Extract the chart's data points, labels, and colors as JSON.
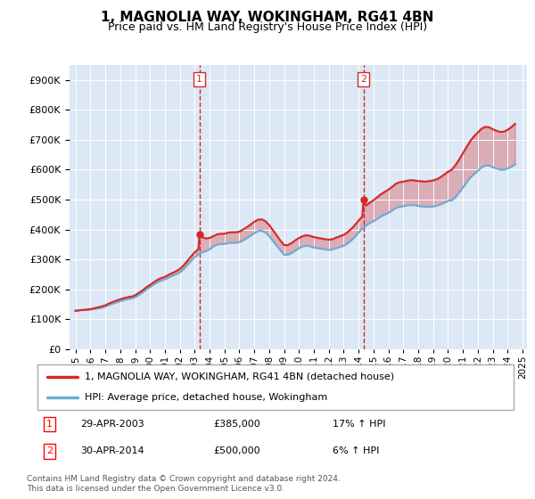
{
  "title": "1, MAGNOLIA WAY, WOKINGHAM, RG41 4BN",
  "subtitle": "Price paid vs. HM Land Registry's House Price Index (HPI)",
  "ylim": [
    0,
    950000
  ],
  "yticks": [
    0,
    100000,
    200000,
    300000,
    400000,
    500000,
    600000,
    700000,
    800000,
    900000
  ],
  "sale1_date": 2003.32,
  "sale1_price": 385000,
  "sale2_date": 2014.33,
  "sale2_price": 500000,
  "hpi_color": "#6baed6",
  "price_color": "#d62728",
  "vline_color": "#d62728",
  "bg_color": "#dce8f5",
  "legend_label_price": "1, MAGNOLIA WAY, WOKINGHAM, RG41 4BN (detached house)",
  "legend_label_hpi": "HPI: Average price, detached house, Wokingham",
  "footer": "Contains HM Land Registry data © Crown copyright and database right 2024.\nThis data is licensed under the Open Government Licence v3.0.",
  "hpi_data": [
    [
      1995.0,
      130000
    ],
    [
      1995.25,
      131000
    ],
    [
      1995.5,
      131500
    ],
    [
      1995.75,
      132000
    ],
    [
      1996.0,
      133000
    ],
    [
      1996.25,
      135000
    ],
    [
      1996.5,
      137000
    ],
    [
      1996.75,
      139000
    ],
    [
      1997.0,
      143000
    ],
    [
      1997.25,
      148000
    ],
    [
      1997.5,
      153000
    ],
    [
      1997.75,
      157000
    ],
    [
      1998.0,
      161000
    ],
    [
      1998.25,
      165000
    ],
    [
      1998.5,
      168000
    ],
    [
      1998.75,
      170000
    ],
    [
      1999.0,
      174000
    ],
    [
      1999.25,
      182000
    ],
    [
      1999.5,
      190000
    ],
    [
      1999.75,
      200000
    ],
    [
      2000.0,
      208000
    ],
    [
      2000.25,
      217000
    ],
    [
      2000.5,
      224000
    ],
    [
      2000.75,
      230000
    ],
    [
      2001.0,
      234000
    ],
    [
      2001.25,
      240000
    ],
    [
      2001.5,
      246000
    ],
    [
      2001.75,
      251000
    ],
    [
      2002.0,
      257000
    ],
    [
      2002.25,
      268000
    ],
    [
      2002.5,
      282000
    ],
    [
      2002.75,
      296000
    ],
    [
      2003.0,
      308000
    ],
    [
      2003.25,
      318000
    ],
    [
      2003.5,
      324000
    ],
    [
      2003.75,
      328000
    ],
    [
      2004.0,
      334000
    ],
    [
      2004.25,
      344000
    ],
    [
      2004.5,
      350000
    ],
    [
      2004.75,
      352000
    ],
    [
      2005.0,
      352000
    ],
    [
      2005.25,
      355000
    ],
    [
      2005.5,
      356000
    ],
    [
      2005.75,
      356000
    ],
    [
      2006.0,
      358000
    ],
    [
      2006.25,
      364000
    ],
    [
      2006.5,
      372000
    ],
    [
      2006.75,
      380000
    ],
    [
      2007.0,
      388000
    ],
    [
      2007.25,
      395000
    ],
    [
      2007.5,
      396000
    ],
    [
      2007.75,
      390000
    ],
    [
      2008.0,
      378000
    ],
    [
      2008.25,
      362000
    ],
    [
      2008.5,
      346000
    ],
    [
      2008.75,
      330000
    ],
    [
      2009.0,
      316000
    ],
    [
      2009.25,
      316000
    ],
    [
      2009.5,
      322000
    ],
    [
      2009.75,
      330000
    ],
    [
      2010.0,
      338000
    ],
    [
      2010.25,
      344000
    ],
    [
      2010.5,
      346000
    ],
    [
      2010.75,
      344000
    ],
    [
      2011.0,
      340000
    ],
    [
      2011.25,
      338000
    ],
    [
      2011.5,
      336000
    ],
    [
      2011.75,
      334000
    ],
    [
      2012.0,
      332000
    ],
    [
      2012.25,
      334000
    ],
    [
      2012.5,
      338000
    ],
    [
      2012.75,
      342000
    ],
    [
      2013.0,
      346000
    ],
    [
      2013.25,
      354000
    ],
    [
      2013.5,
      364000
    ],
    [
      2013.75,
      376000
    ],
    [
      2014.0,
      390000
    ],
    [
      2014.25,
      403000
    ],
    [
      2014.5,
      414000
    ],
    [
      2014.75,
      422000
    ],
    [
      2015.0,
      428000
    ],
    [
      2015.25,
      436000
    ],
    [
      2015.5,
      444000
    ],
    [
      2015.75,
      450000
    ],
    [
      2016.0,
      456000
    ],
    [
      2016.25,
      464000
    ],
    [
      2016.5,
      472000
    ],
    [
      2016.75,
      476000
    ],
    [
      2017.0,
      478000
    ],
    [
      2017.25,
      481000
    ],
    [
      2017.5,
      482000
    ],
    [
      2017.75,
      481000
    ],
    [
      2018.0,
      479000
    ],
    [
      2018.25,
      477000
    ],
    [
      2018.5,
      476000
    ],
    [
      2018.75,
      476000
    ],
    [
      2019.0,
      477000
    ],
    [
      2019.25,
      480000
    ],
    [
      2019.5,
      484000
    ],
    [
      2019.75,
      490000
    ],
    [
      2020.0,
      496000
    ],
    [
      2020.25,
      498000
    ],
    [
      2020.5,
      508000
    ],
    [
      2020.75,
      524000
    ],
    [
      2021.0,
      540000
    ],
    [
      2021.25,
      558000
    ],
    [
      2021.5,
      574000
    ],
    [
      2021.75,
      586000
    ],
    [
      2022.0,
      596000
    ],
    [
      2022.25,
      608000
    ],
    [
      2022.5,
      614000
    ],
    [
      2022.75,
      614000
    ],
    [
      2023.0,
      608000
    ],
    [
      2023.25,
      604000
    ],
    [
      2023.5,
      600000
    ],
    [
      2023.75,
      600000
    ],
    [
      2024.0,
      604000
    ],
    [
      2024.25,
      610000
    ],
    [
      2024.5,
      618000
    ]
  ],
  "price_data": [
    [
      1995.0,
      128000
    ],
    [
      1995.25,
      130000
    ],
    [
      1995.5,
      131500
    ],
    [
      1995.75,
      132500
    ],
    [
      1996.0,
      134000
    ],
    [
      1996.25,
      137000
    ],
    [
      1996.5,
      140000
    ],
    [
      1996.75,
      143000
    ],
    [
      1997.0,
      147000
    ],
    [
      1997.25,
      153000
    ],
    [
      1997.5,
      158000
    ],
    [
      1997.75,
      163000
    ],
    [
      1998.0,
      167000
    ],
    [
      1998.25,
      171000
    ],
    [
      1998.5,
      174000
    ],
    [
      1998.75,
      176000
    ],
    [
      1999.0,
      180000
    ],
    [
      1999.25,
      189000
    ],
    [
      1999.5,
      197000
    ],
    [
      1999.75,
      207000
    ],
    [
      2000.0,
      215000
    ],
    [
      2000.25,
      224000
    ],
    [
      2000.5,
      232000
    ],
    [
      2000.75,
      238000
    ],
    [
      2001.0,
      242000
    ],
    [
      2001.25,
      249000
    ],
    [
      2001.5,
      255000
    ],
    [
      2001.75,
      261000
    ],
    [
      2002.0,
      268000
    ],
    [
      2002.25,
      280000
    ],
    [
      2002.5,
      295000
    ],
    [
      2002.75,
      310000
    ],
    [
      2003.0,
      324000
    ],
    [
      2003.25,
      335000
    ],
    [
      2003.32,
      385000
    ],
    [
      2003.5,
      375000
    ],
    [
      2003.75,
      370000
    ],
    [
      2004.0,
      372000
    ],
    [
      2004.25,
      378000
    ],
    [
      2004.5,
      384000
    ],
    [
      2004.75,
      386000
    ],
    [
      2005.0,
      386000
    ],
    [
      2005.25,
      390000
    ],
    [
      2005.5,
      391000
    ],
    [
      2005.75,
      391000
    ],
    [
      2006.0,
      393000
    ],
    [
      2006.25,
      400000
    ],
    [
      2006.5,
      408000
    ],
    [
      2006.75,
      417000
    ],
    [
      2007.0,
      426000
    ],
    [
      2007.25,
      433000
    ],
    [
      2007.5,
      434000
    ],
    [
      2007.75,
      428000
    ],
    [
      2008.0,
      415000
    ],
    [
      2008.25,
      398000
    ],
    [
      2008.5,
      381000
    ],
    [
      2008.75,
      363000
    ],
    [
      2009.0,
      348000
    ],
    [
      2009.25,
      348000
    ],
    [
      2009.5,
      355000
    ],
    [
      2009.75,
      364000
    ],
    [
      2010.0,
      372000
    ],
    [
      2010.25,
      378000
    ],
    [
      2010.5,
      381000
    ],
    [
      2010.75,
      379000
    ],
    [
      2011.0,
      375000
    ],
    [
      2011.25,
      372000
    ],
    [
      2011.5,
      370000
    ],
    [
      2011.75,
      368000
    ],
    [
      2012.0,
      366000
    ],
    [
      2012.25,
      368000
    ],
    [
      2012.5,
      373000
    ],
    [
      2012.75,
      378000
    ],
    [
      2013.0,
      382000
    ],
    [
      2013.25,
      391000
    ],
    [
      2013.5,
      402000
    ],
    [
      2013.75,
      415000
    ],
    [
      2014.0,
      430000
    ],
    [
      2014.25,
      444000
    ],
    [
      2014.33,
      500000
    ],
    [
      2014.5,
      480000
    ],
    [
      2014.75,
      490000
    ],
    [
      2015.0,
      498000
    ],
    [
      2015.25,
      508000
    ],
    [
      2015.5,
      518000
    ],
    [
      2015.75,
      526000
    ],
    [
      2016.0,
      533000
    ],
    [
      2016.25,
      543000
    ],
    [
      2016.5,
      553000
    ],
    [
      2016.75,
      558000
    ],
    [
      2017.0,
      560000
    ],
    [
      2017.25,
      563000
    ],
    [
      2017.5,
      565000
    ],
    [
      2017.75,
      564000
    ],
    [
      2018.0,
      562000
    ],
    [
      2018.25,
      561000
    ],
    [
      2018.5,
      560000
    ],
    [
      2018.75,
      562000
    ],
    [
      2019.0,
      564000
    ],
    [
      2019.25,
      568000
    ],
    [
      2019.5,
      575000
    ],
    [
      2019.75,
      584000
    ],
    [
      2020.0,
      593000
    ],
    [
      2020.25,
      600000
    ],
    [
      2020.5,
      615000
    ],
    [
      2020.75,
      634000
    ],
    [
      2021.0,
      655000
    ],
    [
      2021.25,
      676000
    ],
    [
      2021.5,
      696000
    ],
    [
      2021.75,
      712000
    ],
    [
      2022.0,
      724000
    ],
    [
      2022.25,
      737000
    ],
    [
      2022.5,
      743000
    ],
    [
      2022.75,
      742000
    ],
    [
      2023.0,
      735000
    ],
    [
      2023.25,
      730000
    ],
    [
      2023.5,
      726000
    ],
    [
      2023.75,
      727000
    ],
    [
      2024.0,
      733000
    ],
    [
      2024.25,
      742000
    ],
    [
      2024.5,
      753000
    ]
  ]
}
